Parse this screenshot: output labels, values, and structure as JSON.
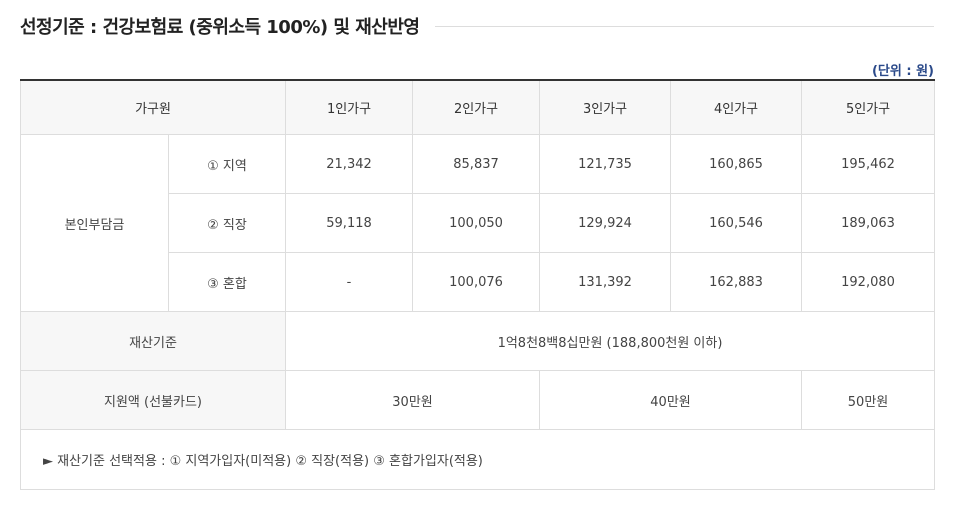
{
  "title": "선정기준 : 건강보험료 (중위소득 100%) 및 재산반영",
  "unit": "(단위 : 원)",
  "table": {
    "header": {
      "group": "가구원",
      "columns": [
        "1인가구",
        "2인가구",
        "3인가구",
        "4인가구",
        "5인가구"
      ]
    },
    "burden": {
      "label": "본인부담금",
      "rows": [
        {
          "type": "① 지역",
          "values": [
            "21,342",
            "85,837",
            "121,735",
            "160,865",
            "195,462"
          ]
        },
        {
          "type": "② 직장",
          "values": [
            "59,118",
            "100,050",
            "129,924",
            "160,546",
            "189,063"
          ]
        },
        {
          "type": "③ 혼합",
          "values": [
            "-",
            "100,076",
            "131,392",
            "162,883",
            "192,080"
          ]
        }
      ]
    },
    "property": {
      "label": "재산기준",
      "value": "1억8천8백8십만원 (188,800천원 이하)"
    },
    "support": {
      "label": "지원액 (선불카드)",
      "values": [
        "30만원",
        "40만원",
        "50만원"
      ]
    },
    "note": "► 재산기준 선택적용 : ① 지역가입자(미적용) ② 직장(적용) ③ 혼합가입자(적용)"
  }
}
